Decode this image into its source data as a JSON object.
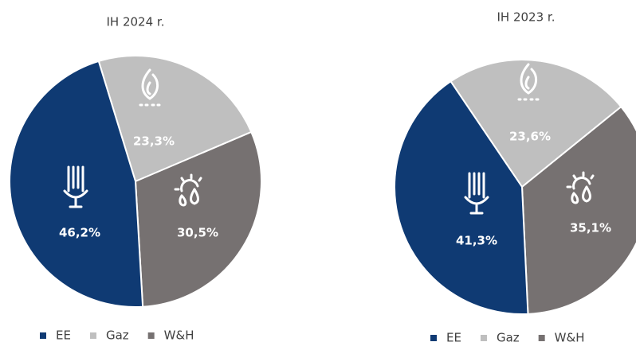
{
  "chart_data": [
    {
      "type": "pie",
      "title": "IH 2024 r.",
      "categories": [
        "EE",
        "Gaz",
        "W&H"
      ],
      "values": [
        46.2,
        23.3,
        30.5
      ],
      "value_labels": [
        "46,2%",
        "23,3%",
        "30,5%"
      ],
      "colors": [
        "#0f3a73",
        "#bfbfbf",
        "#767171"
      ]
    },
    {
      "type": "pie",
      "title": "IH 2023 r.",
      "categories": [
        "EE",
        "Gaz",
        "W&H"
      ],
      "values": [
        41.3,
        23.6,
        35.1
      ],
      "value_labels": [
        "41,3%",
        "23,6%",
        "35,1%"
      ],
      "colors": [
        "#0f3a73",
        "#bfbfbf",
        "#767171"
      ]
    }
  ]
}
